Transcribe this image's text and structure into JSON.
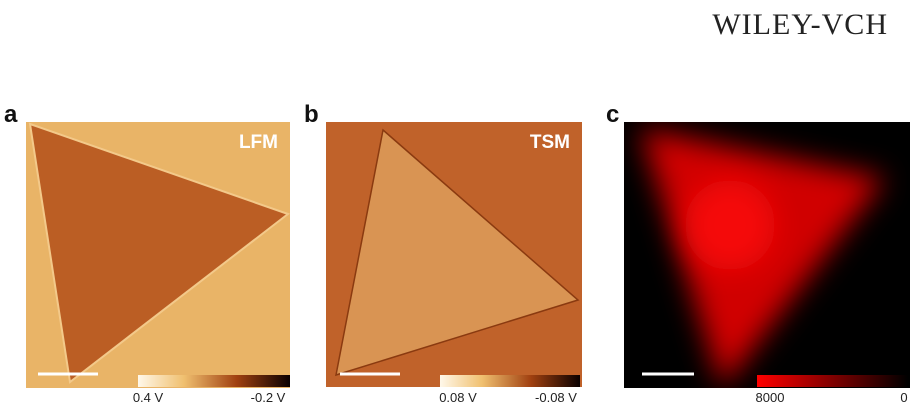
{
  "header": {
    "logo": "WILEY-VCH"
  },
  "panels": [
    {
      "label": "a",
      "mode": "LFM",
      "colorbar": {
        "min_label": "0.4 V",
        "max_label": "-0.2 V"
      }
    },
    {
      "label": "b",
      "mode": "TSM",
      "colorbar": {
        "min_label": "0.08 V",
        "max_label": "-0.08 V"
      }
    },
    {
      "label": "c",
      "colorbar": {
        "min_label": "8000",
        "max_label": "0"
      }
    }
  ]
}
